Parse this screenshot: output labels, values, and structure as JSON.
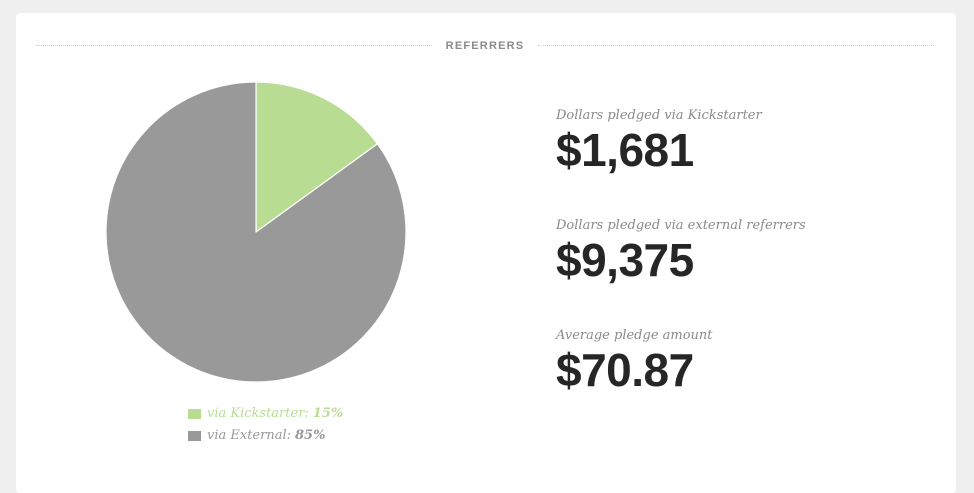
{
  "section": {
    "title": "REFERRERS"
  },
  "chart_data": {
    "type": "pie",
    "title": "",
    "slices": [
      {
        "label": "via Kickstarter:",
        "value": 15,
        "display": "15%",
        "color": "#b8dc91"
      },
      {
        "label": "via External:",
        "value": 85,
        "display": "85%",
        "color": "#999999"
      }
    ],
    "legend_position": "bottom"
  },
  "stats": [
    {
      "label": "Dollars pledged via Kickstarter",
      "value": "$1,681"
    },
    {
      "label": "Dollars pledged via external referrers",
      "value": "$9,375"
    },
    {
      "label": "Average pledge amount",
      "value": "$70.87"
    }
  ]
}
